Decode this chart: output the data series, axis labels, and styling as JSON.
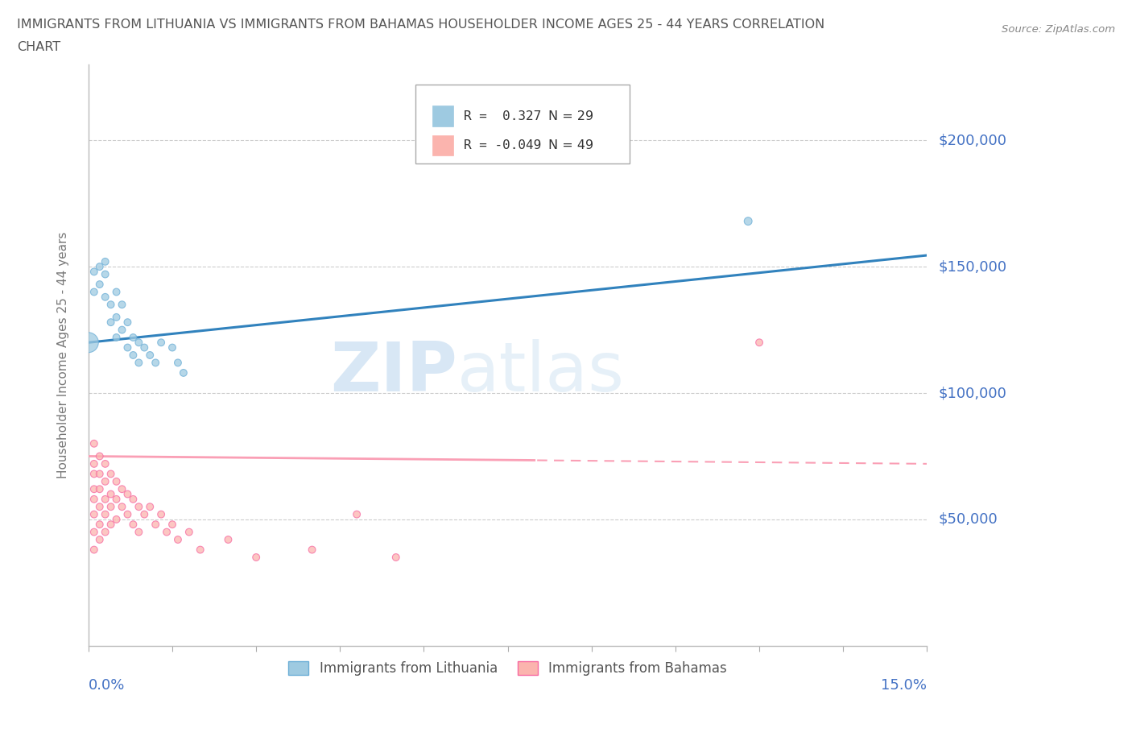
{
  "title_line1": "IMMIGRANTS FROM LITHUANIA VS IMMIGRANTS FROM BAHAMAS HOUSEHOLDER INCOME AGES 25 - 44 YEARS CORRELATION",
  "title_line2": "CHART",
  "source": "Source: ZipAtlas.com",
  "ylabel": "Householder Income Ages 25 - 44 years",
  "xlim": [
    0,
    0.15
  ],
  "ylim": [
    0,
    230000
  ],
  "yticks": [
    50000,
    100000,
    150000,
    200000
  ],
  "ytick_labels": [
    "$50,000",
    "$100,000",
    "$150,000",
    "$200,000"
  ],
  "watermark_zip": "ZIP",
  "watermark_atlas": "atlas",
  "legend_R1": "R =  0.327",
  "legend_N1": "N = 29",
  "legend_R2": "R = -0.049",
  "legend_N2": "N = 49",
  "legend_label1": "Immigrants from Lithuania",
  "legend_label2": "Immigrants from Bahamas",
  "color_blue": "#9ecae1",
  "color_pink": "#fbb4ae",
  "color_blue_edge": "#6baed6",
  "color_pink_edge": "#f768a1",
  "color_trend_blue": "#3182bd",
  "color_trend_pink": "#fa9fb5",
  "color_axis_label": "#4472c4",
  "color_title": "#555555",
  "color_source": "#888888",
  "color_ylabel": "#777777",
  "color_grid": "#cccccc",
  "color_watermark": "#ddeeff",
  "trend_blue_intercept": 120000,
  "trend_blue_slope": 230000,
  "trend_pink_intercept": 75000,
  "trend_pink_slope": -20000,
  "trend_solid_end": 0.08,
  "lithuania_x": [
    0.001,
    0.001,
    0.002,
    0.002,
    0.003,
    0.003,
    0.003,
    0.004,
    0.004,
    0.005,
    0.005,
    0.005,
    0.006,
    0.006,
    0.007,
    0.007,
    0.008,
    0.008,
    0.009,
    0.009,
    0.01,
    0.011,
    0.012,
    0.013,
    0.015,
    0.016,
    0.017,
    0.118,
    0.0
  ],
  "lithuania_y": [
    148000,
    140000,
    150000,
    143000,
    147000,
    138000,
    152000,
    135000,
    128000,
    130000,
    122000,
    140000,
    125000,
    135000,
    118000,
    128000,
    115000,
    122000,
    120000,
    112000,
    118000,
    115000,
    112000,
    120000,
    118000,
    112000,
    108000,
    168000,
    120000
  ],
  "lithuania_sizes": [
    40,
    40,
    40,
    40,
    40,
    40,
    40,
    40,
    40,
    40,
    40,
    40,
    40,
    40,
    40,
    40,
    40,
    40,
    40,
    40,
    40,
    40,
    40,
    40,
    40,
    40,
    40,
    50,
    320
  ],
  "bahamas_x": [
    0.001,
    0.001,
    0.001,
    0.001,
    0.001,
    0.001,
    0.001,
    0.001,
    0.002,
    0.002,
    0.002,
    0.002,
    0.002,
    0.002,
    0.003,
    0.003,
    0.003,
    0.003,
    0.003,
    0.004,
    0.004,
    0.004,
    0.004,
    0.005,
    0.005,
    0.005,
    0.006,
    0.006,
    0.007,
    0.007,
    0.008,
    0.008,
    0.009,
    0.009,
    0.01,
    0.011,
    0.012,
    0.013,
    0.014,
    0.015,
    0.016,
    0.018,
    0.02,
    0.025,
    0.03,
    0.04,
    0.048,
    0.055,
    0.12
  ],
  "bahamas_y": [
    80000,
    72000,
    68000,
    62000,
    58000,
    52000,
    45000,
    38000,
    75000,
    68000,
    62000,
    55000,
    48000,
    42000,
    72000,
    65000,
    58000,
    52000,
    45000,
    68000,
    60000,
    55000,
    48000,
    65000,
    58000,
    50000,
    62000,
    55000,
    60000,
    52000,
    58000,
    48000,
    55000,
    45000,
    52000,
    55000,
    48000,
    52000,
    45000,
    48000,
    42000,
    45000,
    38000,
    42000,
    35000,
    38000,
    52000,
    35000,
    120000
  ],
  "bahamas_sizes": [
    40,
    40,
    40,
    40,
    40,
    40,
    40,
    40,
    40,
    40,
    40,
    40,
    40,
    40,
    40,
    40,
    40,
    40,
    40,
    40,
    40,
    40,
    40,
    40,
    40,
    40,
    40,
    40,
    40,
    40,
    40,
    40,
    40,
    40,
    40,
    40,
    40,
    40,
    40,
    40,
    40,
    40,
    40,
    40,
    40,
    40,
    40,
    40,
    40
  ]
}
